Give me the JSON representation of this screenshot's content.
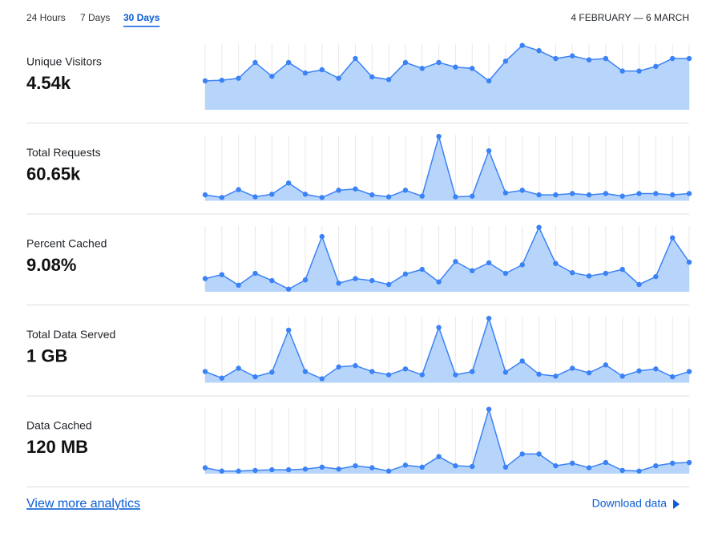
{
  "tabs": [
    "24 Hours",
    "7 Days",
    "30 Days"
  ],
  "active_tab": 2,
  "date_range": "4 FEBRUARY — 6 MARCH",
  "metrics": [
    {
      "label": "Unique Visitors",
      "value": "4.54k",
      "chart": {
        "type": "area",
        "ylim": [
          0,
          100
        ],
        "color": "#3b82f6",
        "fill": "#b7d5fb",
        "values": [
          44,
          45,
          48,
          72,
          51,
          72,
          56,
          61,
          48,
          78,
          50,
          46,
          72,
          63,
          72,
          65,
          63,
          44,
          74,
          98,
          90,
          78,
          82,
          76,
          78,
          59,
          59,
          66,
          78,
          78
        ]
      }
    },
    {
      "label": "Total Requests",
      "value": "60.65k",
      "chart": {
        "type": "area",
        "ylim": [
          0,
          100
        ],
        "color": "#3b82f6",
        "fill": "#b7d5fb",
        "values": [
          9,
          5,
          17,
          6,
          10,
          27,
          10,
          5,
          16,
          18,
          9,
          6,
          16,
          7,
          98,
          6,
          7,
          76,
          12,
          16,
          9,
          9,
          11,
          9,
          11,
          7,
          11,
          11,
          9,
          11
        ]
      }
    },
    {
      "label": "Percent Cached",
      "value": "9.08%",
      "chart": {
        "type": "area",
        "ylim": [
          0,
          100
        ],
        "color": "#3b82f6",
        "fill": "#b7d5fb",
        "values": [
          20,
          26,
          10,
          28,
          17,
          4,
          18,
          84,
          13,
          20,
          17,
          11,
          27,
          34,
          15,
          46,
          32,
          44,
          28,
          41,
          98,
          43,
          29,
          24,
          28,
          34,
          11,
          23,
          82,
          45
        ]
      }
    },
    {
      "label": "Total Data Served",
      "value": "1 GB",
      "chart": {
        "type": "area",
        "ylim": [
          0,
          100
        ],
        "color": "#3b82f6",
        "fill": "#b7d5fb",
        "values": [
          17,
          7,
          22,
          9,
          16,
          80,
          17,
          6,
          24,
          26,
          17,
          12,
          21,
          12,
          84,
          12,
          17,
          98,
          16,
          33,
          13,
          10,
          22,
          15,
          27,
          10,
          18,
          21,
          9,
          17
        ]
      }
    },
    {
      "label": "Data Cached",
      "value": "120 MB",
      "chart": {
        "type": "area",
        "ylim": [
          0,
          100
        ],
        "color": "#3b82f6",
        "fill": "#b7d5fb",
        "values": [
          9,
          4,
          4,
          5,
          6,
          6,
          7,
          10,
          7,
          12,
          9,
          4,
          13,
          10,
          26,
          12,
          11,
          98,
          10,
          30,
          30,
          12,
          16,
          9,
          17,
          5,
          4,
          12,
          16,
          17
        ]
      }
    }
  ],
  "footer": {
    "more_link": "View more analytics",
    "download": "Download data"
  }
}
